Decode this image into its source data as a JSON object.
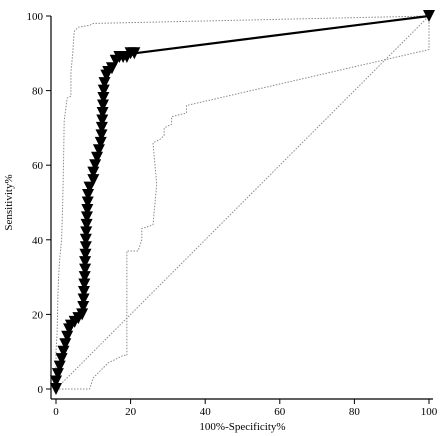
{
  "chart_data": {
    "type": "line",
    "xlabel": "100%-Specificity%",
    "ylabel": "Sensitivity%",
    "xlim": [
      0,
      100
    ],
    "ylim": [
      0,
      100
    ],
    "x_ticks": [
      0,
      20,
      40,
      60,
      80,
      100
    ],
    "y_ticks": [
      0,
      20,
      40,
      60,
      80,
      100
    ],
    "grid": false,
    "series": [
      {
        "role": "roc",
        "style": "solid-thick-with-downward-triangle-markers",
        "points": [
          [
            0,
            0
          ],
          [
            0,
            2
          ],
          [
            0.5,
            4
          ],
          [
            1,
            6
          ],
          [
            1.5,
            8
          ],
          [
            2,
            10
          ],
          [
            2.5,
            12
          ],
          [
            3,
            14
          ],
          [
            3.5,
            16
          ],
          [
            4,
            17
          ],
          [
            5,
            18
          ],
          [
            6,
            19
          ],
          [
            7,
            20
          ],
          [
            7.3,
            22
          ],
          [
            7.4,
            24
          ],
          [
            7.5,
            26
          ],
          [
            7.6,
            28
          ],
          [
            7.7,
            30
          ],
          [
            7.8,
            32
          ],
          [
            7.8,
            34
          ],
          [
            7.9,
            36
          ],
          [
            8,
            38
          ],
          [
            8,
            40
          ],
          [
            8.1,
            42
          ],
          [
            8.2,
            44
          ],
          [
            8.3,
            46
          ],
          [
            8.4,
            48
          ],
          [
            8.5,
            50
          ],
          [
            8.6,
            52
          ],
          [
            9,
            54
          ],
          [
            10,
            56
          ],
          [
            10,
            58
          ],
          [
            10.5,
            60
          ],
          [
            11,
            62
          ],
          [
            11.5,
            64
          ],
          [
            12,
            66
          ],
          [
            12.2,
            68
          ],
          [
            12.3,
            70
          ],
          [
            12.4,
            72
          ],
          [
            12.5,
            74
          ],
          [
            12.6,
            76
          ],
          [
            12.7,
            78
          ],
          [
            12.8,
            80
          ],
          [
            13,
            82
          ],
          [
            13.5,
            84
          ],
          [
            14,
            85
          ],
          [
            15,
            86
          ],
          [
            16,
            88
          ],
          [
            17,
            89
          ],
          [
            18,
            89
          ],
          [
            19,
            89
          ],
          [
            20,
            90
          ],
          [
            21,
            90
          ],
          [
            100,
            100
          ]
        ]
      },
      {
        "role": "ci-upper",
        "style": "dotted-thin",
        "points": [
          [
            0,
            0
          ],
          [
            0,
            10
          ],
          [
            0.3,
            15
          ],
          [
            0.5,
            25
          ],
          [
            0.7,
            30
          ],
          [
            1,
            35
          ],
          [
            1.2,
            37
          ],
          [
            1.5,
            40
          ],
          [
            1.8,
            50
          ],
          [
            2,
            60
          ],
          [
            2.2,
            72
          ],
          [
            3,
            78
          ],
          [
            4,
            78.5
          ],
          [
            4,
            85
          ],
          [
            4.5,
            90
          ],
          [
            4.8,
            95
          ],
          [
            5,
            96
          ],
          [
            6,
            97
          ],
          [
            9,
            97.5
          ],
          [
            10,
            98
          ],
          [
            100,
            100
          ]
        ]
      },
      {
        "role": "ci-lower",
        "style": "dotted-thin",
        "points": [
          [
            0,
            0
          ],
          [
            9,
            0
          ],
          [
            10,
            3
          ],
          [
            12,
            5
          ],
          [
            14,
            7
          ],
          [
            16,
            8
          ],
          [
            18,
            9
          ],
          [
            19,
            9
          ],
          [
            19,
            37
          ],
          [
            22,
            37
          ],
          [
            23,
            40
          ],
          [
            23,
            43
          ],
          [
            26,
            44
          ],
          [
            27,
            55
          ],
          [
            26,
            66
          ],
          [
            28,
            67
          ],
          [
            29,
            68
          ],
          [
            29,
            70
          ],
          [
            31,
            71
          ],
          [
            31,
            73
          ],
          [
            35,
            74
          ],
          [
            35,
            76
          ],
          [
            100,
            91
          ],
          [
            100,
            100
          ]
        ]
      },
      {
        "role": "reference",
        "style": "dotted-thin",
        "points": [
          [
            0,
            0
          ],
          [
            100,
            100
          ]
        ]
      }
    ]
  }
}
